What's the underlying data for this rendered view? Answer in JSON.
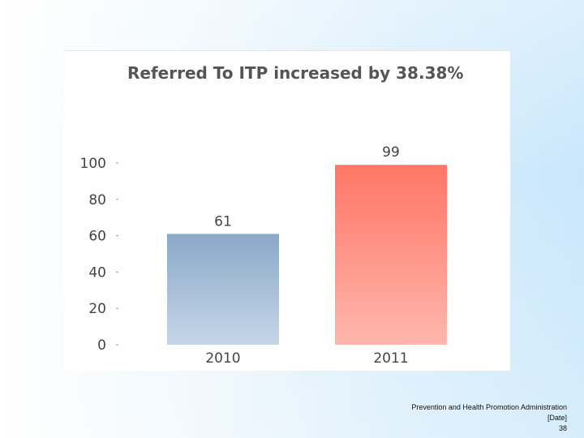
{
  "chart_data": {
    "type": "bar",
    "title": "Referred To ITP increased by 38.38%",
    "categories": [
      "2010",
      "2011"
    ],
    "values": [
      61,
      99
    ],
    "value_labels": [
      "61",
      "99"
    ],
    "ylim": [
      0,
      100
    ],
    "yticks": [
      0,
      20,
      40,
      60,
      80,
      100
    ],
    "ytick_labels": [
      "0",
      "20",
      "40",
      "60",
      "80",
      "100"
    ],
    "xlabel": "",
    "ylabel": "",
    "grid": false,
    "legend": "none",
    "bar_colors": [
      {
        "top": "#8aa9c8",
        "bottom": "#c6d6e8"
      },
      {
        "top": "#ff7666",
        "bottom": "#ffb6ad"
      }
    ],
    "text_color": "#444444",
    "title_color": "#555555"
  },
  "footer": {
    "organization": "Prevention and Health Promotion Administration",
    "date": "[Date]",
    "page_number": "38"
  }
}
